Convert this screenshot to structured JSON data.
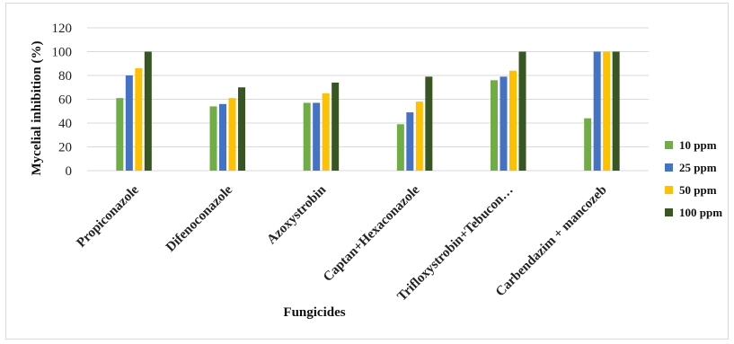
{
  "chart_data": {
    "type": "bar",
    "title": "",
    "xlabel": "Fungicides",
    "ylabel": "Mycelial inhibition (%)",
    "ylim": [
      0,
      120
    ],
    "yticks": [
      0,
      20,
      40,
      60,
      80,
      100,
      120
    ],
    "grid": true,
    "legend_position": "right",
    "categories": [
      "Propiconazole",
      "Difenoconazole",
      "Azoxystrobin",
      "Captan+Hexaconazole",
      "Trifloxystrobin+Tebucon…",
      "Carbendazim + mancozeb"
    ],
    "series": [
      {
        "name": "10 ppm",
        "color": "#70ad47",
        "values": [
          61,
          54,
          57,
          39,
          76,
          44
        ]
      },
      {
        "name": "25 ppm",
        "color": "#4472c4",
        "values": [
          80,
          56,
          57,
          49,
          79,
          100
        ]
      },
      {
        "name": "50 ppm",
        "color": "#ffc000",
        "values": [
          86,
          61,
          65,
          58,
          84,
          100
        ]
      },
      {
        "name": "100 ppm",
        "color": "#375623",
        "values": [
          100,
          70,
          74,
          79,
          100,
          100
        ]
      }
    ]
  }
}
